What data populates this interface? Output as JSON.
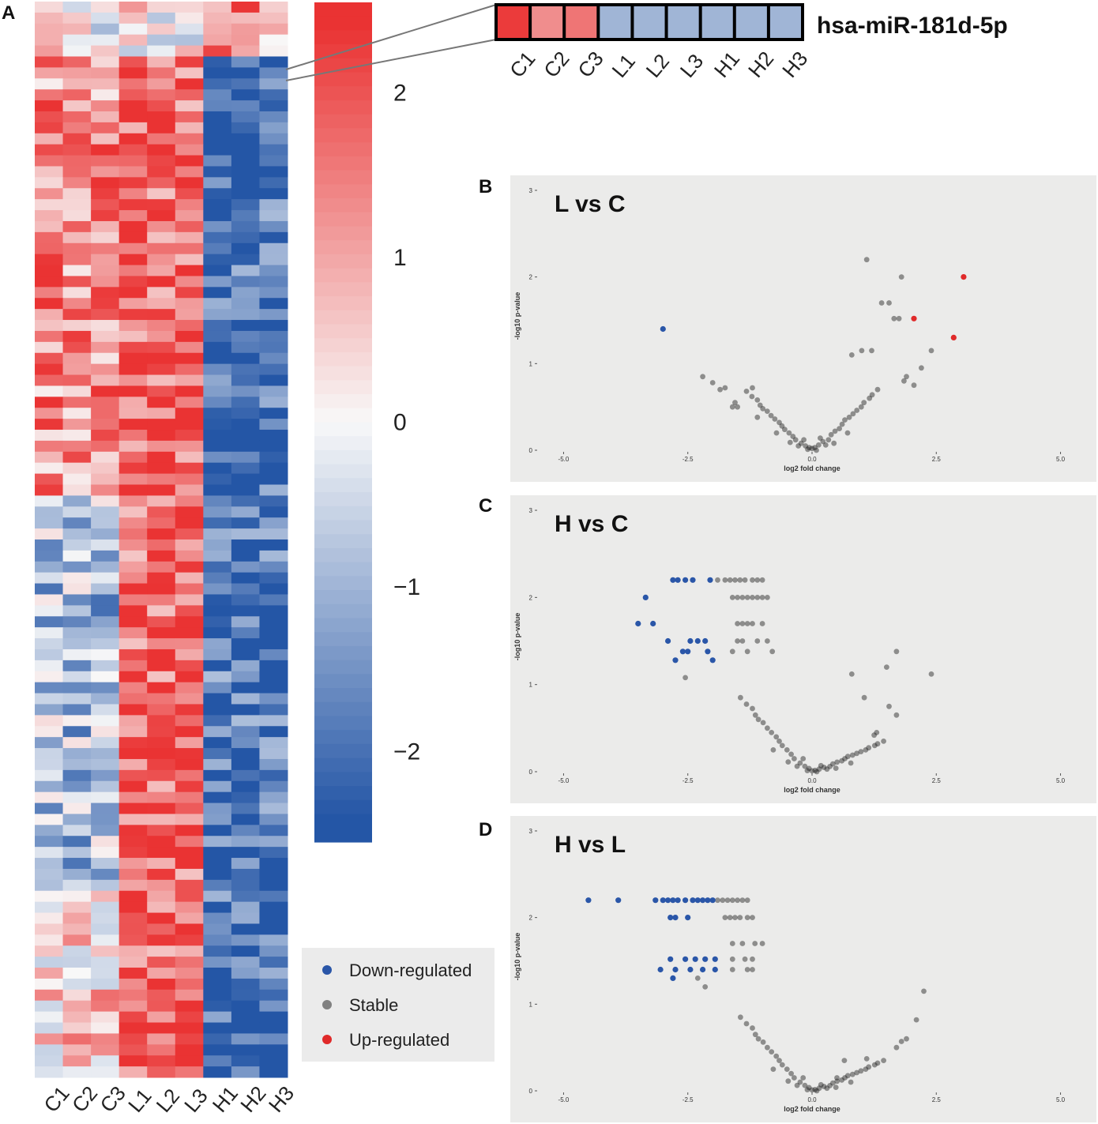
{
  "panel_labels": {
    "a": "A",
    "b": "B",
    "c": "C",
    "d": "D"
  },
  "heatmap": {
    "columns": [
      "C1",
      "C2",
      "C3",
      "L1",
      "L2",
      "L3",
      "H1",
      "H2",
      "H3"
    ],
    "rows": 98,
    "color_scale": {
      "low": "#2456a6",
      "mid": "#f8f8f8",
      "high": "#ea3333"
    },
    "colorbar_ticks": [
      "2",
      "1",
      "0",
      "−1",
      "−2"
    ],
    "colorbar_values": [
      2,
      1,
      0,
      -1,
      -2
    ],
    "colorbar_range": [
      -2.55,
      2.55
    ]
  },
  "inset": {
    "gene": "hsa-miR-181d-5p",
    "columns": [
      "C1",
      "C2",
      "C3",
      "L1",
      "L2",
      "L3",
      "H1",
      "H2",
      "H3"
    ],
    "values": [
      2.3,
      1.3,
      1.6,
      -1.0,
      -1.0,
      -1.0,
      -1.0,
      -1.0,
      -1.0
    ]
  },
  "legend": {
    "items": [
      {
        "label": "Down-regulated",
        "color": "#2a56a8"
      },
      {
        "label": "Stable",
        "color": "#808080"
      },
      {
        "label": "Up-regulated",
        "color": "#e02a2a"
      }
    ]
  },
  "chart_data": [
    {
      "type": "scatter",
      "title": "L vs C",
      "xlabel": "log2 fold change",
      "ylabel": "-log10 p-value",
      "xlim": [
        -5.5,
        5.5
      ],
      "ylim": [
        0,
        3.1
      ],
      "xticks": [
        "-5.0",
        "-2.5",
        "0.0",
        "2.5",
        "5.0"
      ],
      "yticks": [
        "0",
        "1",
        "2",
        "3"
      ],
      "highlight": {
        "down": [
          [
            -3.0,
            1.4
          ]
        ],
        "up": [
          [
            3.05,
            2.0
          ],
          [
            2.05,
            1.52
          ],
          [
            2.85,
            1.3
          ]
        ]
      },
      "stable": [
        [
          1.1,
          2.2
        ],
        [
          1.8,
          2.0
        ],
        [
          1.4,
          1.7
        ],
        [
          1.55,
          1.7
        ],
        [
          1.65,
          1.52
        ],
        [
          1.75,
          1.52
        ],
        [
          1.0,
          1.15
        ],
        [
          1.2,
          1.15
        ],
        [
          0.8,
          1.1
        ],
        [
          2.4,
          1.15
        ],
        [
          2.2,
          0.95
        ],
        [
          1.9,
          0.85
        ],
        [
          1.85,
          0.8
        ],
        [
          2.05,
          0.75
        ],
        [
          -2.2,
          0.85
        ],
        [
          -2.0,
          0.78
        ],
        [
          -1.85,
          0.7
        ],
        [
          -1.75,
          0.72
        ],
        [
          -1.2,
          0.72
        ],
        [
          -1.55,
          0.55
        ],
        [
          -1.6,
          0.5
        ],
        [
          -1.5,
          0.5
        ],
        [
          -1.1,
          0.38
        ]
      ]
    },
    {
      "type": "scatter",
      "title": "H vs C",
      "xlabel": "log2 fold change",
      "ylabel": "-log10 p-value",
      "xlim": [
        -5.5,
        5.5
      ],
      "ylim": [
        0,
        3.1
      ],
      "xticks": [
        "-5.0",
        "-2.5",
        "0.0",
        "2.5",
        "5.0"
      ],
      "yticks": [
        "0",
        "1",
        "2",
        "3"
      ],
      "highlight": {
        "down": [
          [
            -2.8,
            2.2
          ],
          [
            -2.7,
            2.2
          ],
          [
            -2.55,
            2.2
          ],
          [
            -2.4,
            2.2
          ],
          [
            -3.35,
            2.0
          ],
          [
            -3.5,
            1.7
          ],
          [
            -3.2,
            1.7
          ],
          [
            -2.9,
            1.5
          ],
          [
            -2.45,
            1.5
          ],
          [
            -2.3,
            1.5
          ],
          [
            -2.15,
            1.5
          ],
          [
            -2.6,
            1.38
          ],
          [
            -2.5,
            1.38
          ],
          [
            -2.1,
            1.38
          ],
          [
            -2.75,
            1.28
          ],
          [
            -2.0,
            1.28
          ],
          [
            -2.05,
            2.2
          ]
        ],
        "up": []
      },
      "stable": [
        [
          -1.9,
          2.2
        ],
        [
          -1.75,
          2.2
        ],
        [
          -1.65,
          2.2
        ],
        [
          -1.55,
          2.2
        ],
        [
          -1.45,
          2.2
        ],
        [
          -1.35,
          2.2
        ],
        [
          -1.2,
          2.2
        ],
        [
          -1.1,
          2.2
        ],
        [
          -1.0,
          2.2
        ],
        [
          -1.6,
          2.0
        ],
        [
          -1.5,
          2.0
        ],
        [
          -1.4,
          2.0
        ],
        [
          -1.3,
          2.0
        ],
        [
          -1.2,
          2.0
        ],
        [
          -1.1,
          2.0
        ],
        [
          -1.0,
          2.0
        ],
        [
          -0.9,
          2.0
        ],
        [
          -1.5,
          1.7
        ],
        [
          -1.4,
          1.7
        ],
        [
          -1.3,
          1.7
        ],
        [
          -1.2,
          1.7
        ],
        [
          -1.0,
          1.7
        ],
        [
          -1.5,
          1.5
        ],
        [
          -1.4,
          1.5
        ],
        [
          -1.1,
          1.5
        ],
        [
          -0.9,
          1.5
        ],
        [
          -1.6,
          1.38
        ],
        [
          -1.3,
          1.38
        ],
        [
          -0.8,
          1.38
        ],
        [
          -2.55,
          1.08
        ],
        [
          1.7,
          1.38
        ],
        [
          1.5,
          1.2
        ],
        [
          2.4,
          1.12
        ],
        [
          0.8,
          1.12
        ],
        [
          1.05,
          0.85
        ],
        [
          1.55,
          0.75
        ],
        [
          1.7,
          0.65
        ],
        [
          1.3,
          0.45
        ],
        [
          1.25,
          0.42
        ]
      ]
    },
    {
      "type": "scatter",
      "title": "H vs L",
      "xlabel": "log2 fold change",
      "ylabel": "-log10 p-value",
      "xlim": [
        -5.5,
        5.5
      ],
      "ylim": [
        0,
        3.1
      ],
      "xticks": [
        "-5.0",
        "-2.5",
        "0.0",
        "2.5",
        "5.0"
      ],
      "yticks": [
        "0",
        "1",
        "2",
        "3"
      ],
      "highlight": {
        "down": [
          [
            -4.5,
            2.2
          ],
          [
            -3.9,
            2.2
          ],
          [
            -3.15,
            2.2
          ],
          [
            -3.0,
            2.2
          ],
          [
            -2.9,
            2.2
          ],
          [
            -2.8,
            2.2
          ],
          [
            -2.7,
            2.2
          ],
          [
            -2.55,
            2.2
          ],
          [
            -2.4,
            2.2
          ],
          [
            -2.3,
            2.2
          ],
          [
            -2.2,
            2.2
          ],
          [
            -2.1,
            2.2
          ],
          [
            -2.0,
            2.2
          ],
          [
            -2.85,
            2.0
          ],
          [
            -2.75,
            2.0
          ],
          [
            -2.5,
            2.0
          ],
          [
            -2.85,
            1.52
          ],
          [
            -2.55,
            1.52
          ],
          [
            -2.35,
            1.52
          ],
          [
            -2.15,
            1.52
          ],
          [
            -1.95,
            1.52
          ],
          [
            -3.05,
            1.4
          ],
          [
            -2.75,
            1.4
          ],
          [
            -2.45,
            1.4
          ],
          [
            -2.2,
            1.4
          ],
          [
            -1.95,
            1.4
          ],
          [
            -2.8,
            1.3
          ]
        ],
        "up": []
      },
      "stable": [
        [
          -1.9,
          2.2
        ],
        [
          -1.8,
          2.2
        ],
        [
          -1.7,
          2.2
        ],
        [
          -1.6,
          2.2
        ],
        [
          -1.5,
          2.2
        ],
        [
          -1.4,
          2.2
        ],
        [
          -1.3,
          2.2
        ],
        [
          -1.75,
          2.0
        ],
        [
          -1.65,
          2.0
        ],
        [
          -1.55,
          2.0
        ],
        [
          -1.45,
          2.0
        ],
        [
          -1.3,
          2.0
        ],
        [
          -1.2,
          2.0
        ],
        [
          -1.6,
          1.7
        ],
        [
          -1.4,
          1.7
        ],
        [
          -1.15,
          1.7
        ],
        [
          -1.0,
          1.7
        ],
        [
          -1.6,
          1.52
        ],
        [
          -1.35,
          1.52
        ],
        [
          -1.2,
          1.52
        ],
        [
          -1.6,
          1.4
        ],
        [
          -1.3,
          1.4
        ],
        [
          -1.2,
          1.4
        ],
        [
          -2.3,
          1.3
        ],
        [
          -2.15,
          1.2
        ],
        [
          2.25,
          1.15
        ],
        [
          2.1,
          0.82
        ],
        [
          1.9,
          0.6
        ],
        [
          1.8,
          0.57
        ],
        [
          1.7,
          0.5
        ],
        [
          1.1,
          0.37
        ],
        [
          0.65,
          0.35
        ],
        [
          0.5,
          0.15
        ]
      ]
    }
  ]
}
